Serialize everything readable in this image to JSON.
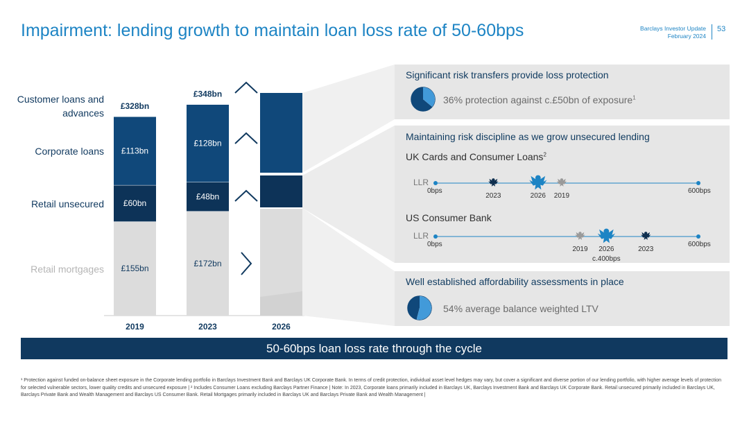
{
  "header": {
    "title": "Impairment: lending growth to maintain loan loss rate of 50-60bps",
    "report_name": "Barclays Investor Update",
    "report_date": "February 2024",
    "page_number": "53"
  },
  "labels": {
    "customer_loans": "Customer loans and advances",
    "corporate": "Corporate loans",
    "retail_unsecured": "Retail unsecured",
    "retail_mortgages": "Retail mortgages"
  },
  "chart_data": {
    "type": "bar",
    "categories": [
      "2019",
      "2023",
      "2026"
    ],
    "totals": [
      "£328bn",
      "£348bn",
      ""
    ],
    "series": [
      {
        "name": "Retail mortgages",
        "values": [
          155,
          172,
          null
        ],
        "labels": [
          "£155bn",
          "£172bn",
          ""
        ],
        "color": "#dcdcdc"
      },
      {
        "name": "Retail unsecured",
        "values": [
          60,
          48,
          null
        ],
        "labels": [
          "£60bn",
          "£48bn",
          ""
        ],
        "color": "#0d3358"
      },
      {
        "name": "Corporate loans",
        "values": [
          113,
          128,
          null
        ],
        "labels": [
          "£113bn",
          "£128bn",
          ""
        ],
        "color": "#10487a"
      }
    ],
    "arrows_2026": [
      "up",
      "up",
      "up",
      "right"
    ]
  },
  "panels": {
    "risk_transfer": {
      "title": "Significant risk transfers provide loss protection",
      "text": "36% protection against c.£50bn of exposure",
      "footnote_ref": "1",
      "pie_percent": 36
    },
    "risk_discipline": {
      "title": "Maintaining risk discipline as we grow unsecured lending",
      "uk": {
        "subtitle": "UK Cards and Consumer Loans",
        "footnote_ref": "2",
        "llr": "LLR",
        "start": "0bps",
        "end": "600bps",
        "points": [
          {
            "label": "2023",
            "pos": 0.22,
            "style": "dark",
            "size": "small"
          },
          {
            "label": "2026",
            "pos": 0.39,
            "style": "blue",
            "size": "large"
          },
          {
            "label": "2019",
            "pos": 0.48,
            "style": "grey",
            "size": "small"
          }
        ]
      },
      "us": {
        "subtitle": "US Consumer Bank",
        "llr": "LLR",
        "start": "0bps",
        "end": "600bps",
        "note": "c.400bps",
        "points": [
          {
            "label": "2019",
            "pos": 0.55,
            "style": "grey",
            "size": "small"
          },
          {
            "label": "2026",
            "pos": 0.65,
            "style": "blue",
            "size": "large"
          },
          {
            "label": "2023",
            "pos": 0.8,
            "style": "dark",
            "size": "small"
          }
        ]
      }
    },
    "affordability": {
      "title": "Well established affordability assessments in place",
      "text": "54% average balance weighted LTV",
      "pie_percent": 54
    }
  },
  "banner": "50-60bps loan loss rate through the cycle",
  "footnote": "¹ Protection against funded on-balance sheet exposure in the Corporate lending portfolio in Barclays Investment Bank and Barclays UK Corporate Bank. In terms of credit protection, individual asset level hedges may vary, but cover a significant and diverse portion of our lending portfolio, with higher average levels of protection for selected vulnerable sectors, lower quality credits and unsecured exposure | ² Includes Consumer Loans excluding Barclays Partner Finance | Note: In 2023, Corporate loans primarily included in Barclays UK, Barclays Investment Bank and Barclays UK Corporate Bank. Retail unsecured primarily included in Barclays UK, Barclays Private Bank and Wealth Management and Barclays US Consumer Bank. Retail Mortgages primarily included in Barclays UK and Barclays Private Bank and Wealth Management |",
  "colors": {
    "accent": "#1d84c4",
    "navy": "#10395f",
    "panel_bg": "#e6e6e6"
  }
}
